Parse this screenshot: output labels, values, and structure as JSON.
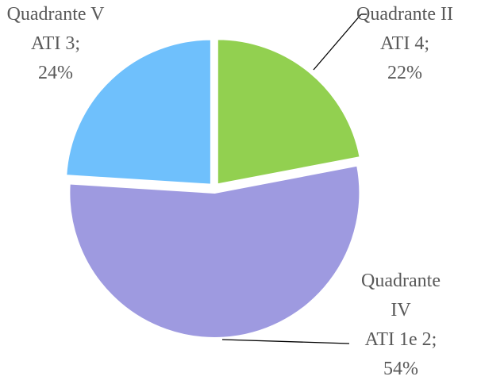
{
  "chart_data": {
    "type": "pie",
    "categories": [
      "Quadrante II",
      "Quadrante IV",
      "Quadrante V"
    ],
    "category_details": [
      "ATI 4;",
      "ATI 1e 2;",
      "ATI 3;"
    ],
    "values": [
      22,
      54,
      24
    ],
    "value_labels": [
      "22%",
      "54%",
      "24%"
    ],
    "colors": [
      "#92d050",
      "#9e9ae0",
      "#6fc0fc"
    ]
  }
}
